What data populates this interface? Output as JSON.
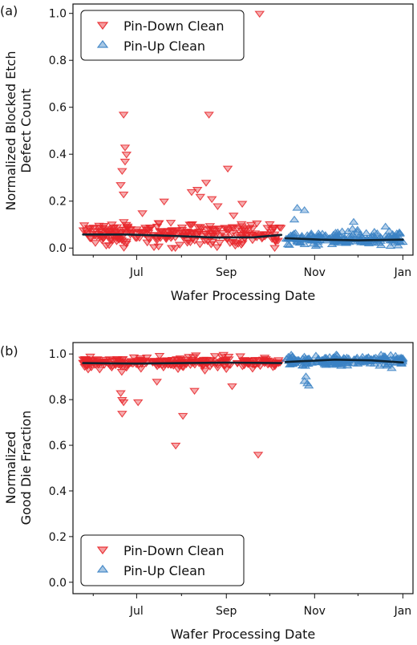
{
  "chart_data": [
    {
      "type": "scatter",
      "panel_label": "(a)",
      "xlabel": "Wafer Processing Date",
      "ylabel_lines": [
        "Normalized Blocked Etch",
        "Defect Count"
      ],
      "x_tick_labels": [
        "Jul",
        "Sep",
        "Nov",
        "Jan"
      ],
      "x_tick_dates": [
        "2019-07-01",
        "2019-09-01",
        "2019-11-01",
        "2020-01-01"
      ],
      "xlim": [
        "2019-05-18",
        "2020-01-08"
      ],
      "ylim": [
        -0.03,
        1.04
      ],
      "y_ticks": [
        0.0,
        0.2,
        0.4,
        0.6,
        0.8,
        1.0
      ],
      "y_tick_labels": [
        "0.0",
        "0.2",
        "0.4",
        "0.6",
        "0.8",
        "1.0"
      ],
      "legend_position": "top-left",
      "series": [
        {
          "name": "Pin-Down Clean",
          "marker": "triangle-down",
          "color": "#e8262a",
          "date_range": [
            "2019-05-25",
            "2019-10-09"
          ],
          "base_level": 0.06,
          "spread": 0.045,
          "count": 260,
          "outliers": [
            {
              "x": "2019-06-22",
              "y": 0.57
            },
            {
              "x": "2019-08-20",
              "y": 0.57
            },
            {
              "x": "2019-09-24",
              "y": 1.0
            },
            {
              "x": "2019-06-23",
              "y": 0.43
            },
            {
              "x": "2019-06-24",
              "y": 0.4
            },
            {
              "x": "2019-06-23",
              "y": 0.37
            },
            {
              "x": "2019-06-21",
              "y": 0.33
            },
            {
              "x": "2019-06-20",
              "y": 0.27
            },
            {
              "x": "2019-06-22",
              "y": 0.23
            },
            {
              "x": "2019-07-20",
              "y": 0.2
            },
            {
              "x": "2019-08-08",
              "y": 0.24
            },
            {
              "x": "2019-08-12",
              "y": 0.25
            },
            {
              "x": "2019-08-14",
              "y": 0.22
            },
            {
              "x": "2019-08-18",
              "y": 0.28
            },
            {
              "x": "2019-08-22",
              "y": 0.21
            },
            {
              "x": "2019-08-26",
              "y": 0.18
            },
            {
              "x": "2019-09-02",
              "y": 0.34
            },
            {
              "x": "2019-09-12",
              "y": 0.19
            },
            {
              "x": "2019-07-05",
              "y": 0.15
            },
            {
              "x": "2019-09-06",
              "y": 0.14
            }
          ]
        },
        {
          "name": "Pin-Up Clean",
          "marker": "triangle-up",
          "color": "#3b82c4",
          "date_range": [
            "2019-10-12",
            "2020-01-01"
          ],
          "base_level": 0.04,
          "spread": 0.025,
          "count": 180,
          "outliers": [
            {
              "x": "2019-10-20",
              "y": 0.17
            },
            {
              "x": "2019-10-25",
              "y": 0.16
            },
            {
              "x": "2019-10-18",
              "y": 0.12
            },
            {
              "x": "2019-11-28",
              "y": 0.11
            },
            {
              "x": "2019-12-20",
              "y": 0.09
            }
          ]
        }
      ],
      "trend": [
        {
          "x": "2019-05-25",
          "y": 0.058
        },
        {
          "x": "2019-06-25",
          "y": 0.058
        },
        {
          "x": "2019-07-25",
          "y": 0.052
        },
        {
          "x": "2019-08-25",
          "y": 0.045
        },
        {
          "x": "2019-09-20",
          "y": 0.046
        },
        {
          "x": "2019-10-09",
          "y": 0.056
        },
        {
          "x": "2019-10-12",
          "y": 0.042
        },
        {
          "x": "2019-11-05",
          "y": 0.036
        },
        {
          "x": "2019-12-01",
          "y": 0.033
        },
        {
          "x": "2020-01-01",
          "y": 0.036
        }
      ],
      "trend_color": "#0e2230"
    },
    {
      "type": "scatter",
      "panel_label": "(b)",
      "xlabel": "Wafer Processing Date",
      "ylabel_lines": [
        "Normalized",
        "Good Die Fraction"
      ],
      "x_tick_labels": [
        "Jul",
        "Sep",
        "Nov",
        "Jan"
      ],
      "x_tick_dates": [
        "2019-07-01",
        "2019-09-01",
        "2019-11-01",
        "2020-01-01"
      ],
      "xlim": [
        "2019-05-18",
        "2020-01-08"
      ],
      "ylim": [
        -0.05,
        1.05
      ],
      "y_ticks": [
        0.0,
        0.2,
        0.4,
        0.6,
        0.8,
        1.0
      ],
      "y_tick_labels": [
        "0.0",
        "0.2",
        "0.4",
        "0.6",
        "0.8",
        "1.0"
      ],
      "legend_position": "bottom-left",
      "series": [
        {
          "name": "Pin-Down Clean",
          "marker": "triangle-down",
          "color": "#e8262a",
          "date_range": [
            "2019-05-25",
            "2019-10-09"
          ],
          "base_level": 0.965,
          "spread": 0.025,
          "count": 260,
          "outliers": [
            {
              "x": "2019-06-20",
              "y": 0.83
            },
            {
              "x": "2019-06-21",
              "y": 0.8
            },
            {
              "x": "2019-06-22",
              "y": 0.79
            },
            {
              "x": "2019-06-21",
              "y": 0.74
            },
            {
              "x": "2019-07-02",
              "y": 0.79
            },
            {
              "x": "2019-07-28",
              "y": 0.6
            },
            {
              "x": "2019-08-02",
              "y": 0.73
            },
            {
              "x": "2019-09-23",
              "y": 0.56
            },
            {
              "x": "2019-08-10",
              "y": 0.84
            },
            {
              "x": "2019-09-05",
              "y": 0.86
            },
            {
              "x": "2019-07-15",
              "y": 0.88
            }
          ]
        },
        {
          "name": "Pin-Up Clean",
          "marker": "triangle-up",
          "color": "#3b82c4",
          "date_range": [
            "2019-10-12",
            "2020-01-01"
          ],
          "base_level": 0.97,
          "spread": 0.02,
          "count": 180,
          "outliers": [
            {
              "x": "2019-10-26",
              "y": 0.9
            },
            {
              "x": "2019-10-27",
              "y": 0.87
            },
            {
              "x": "2019-10-28",
              "y": 0.86
            },
            {
              "x": "2019-10-25",
              "y": 0.88
            }
          ]
        }
      ],
      "trend": [
        {
          "x": "2019-05-25",
          "y": 0.96
        },
        {
          "x": "2019-07-01",
          "y": 0.958
        },
        {
          "x": "2019-08-01",
          "y": 0.96
        },
        {
          "x": "2019-09-01",
          "y": 0.962
        },
        {
          "x": "2019-10-09",
          "y": 0.96
        },
        {
          "x": "2019-10-12",
          "y": 0.965
        },
        {
          "x": "2019-11-15",
          "y": 0.975
        },
        {
          "x": "2019-12-10",
          "y": 0.972
        },
        {
          "x": "2020-01-01",
          "y": 0.963
        }
      ],
      "trend_color": "#0e2230"
    }
  ]
}
